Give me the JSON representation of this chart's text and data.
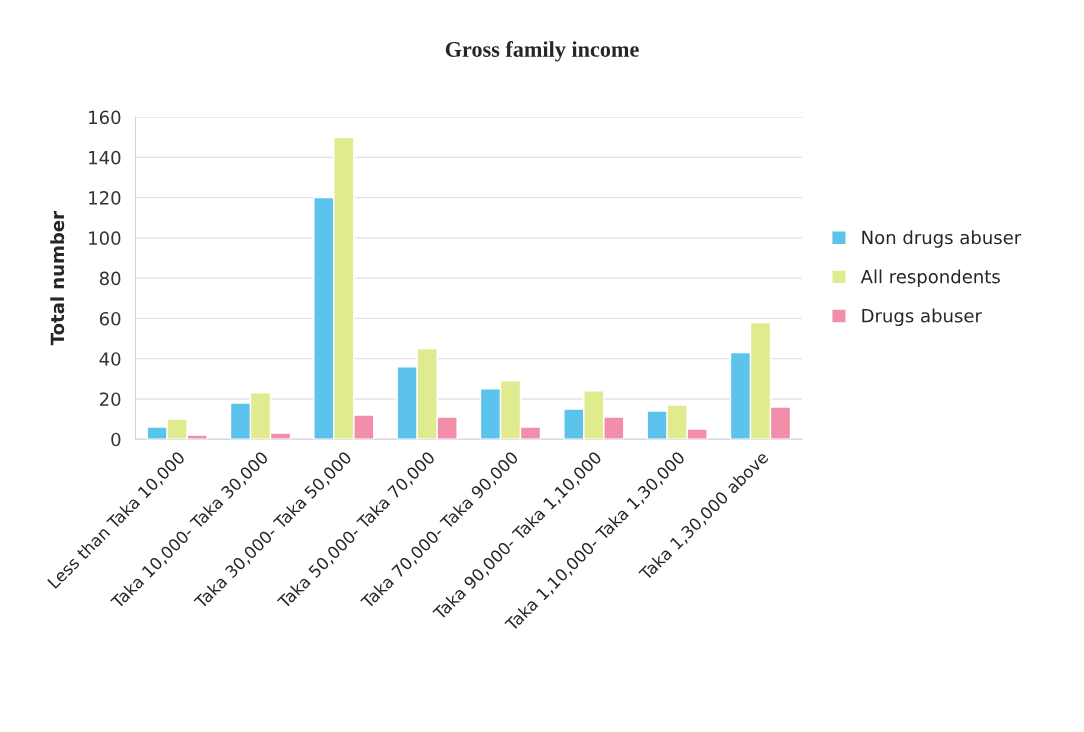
{
  "chart_data": {
    "type": "bar",
    "title": "Gross family income",
    "ylabel": "Total number",
    "categories": [
      "Less than Taka 10,000",
      "Taka 10,000- Taka 30,000",
      "Taka 30,000- Taka 50,000",
      "Taka 50,000- Taka 70,000",
      "Taka 70,000- Taka 90,000",
      "Taka 90,000- Taka 1,10,000",
      "Taka 1,10,000- Taka 1,30,000",
      "Taka 1,30,000 above"
    ],
    "series": [
      {
        "name": "Non drugs abuser",
        "color": "#5cc3ec",
        "values": [
          6,
          18,
          120,
          36,
          25,
          15,
          14,
          43
        ]
      },
      {
        "name": "All respondents",
        "color": "#dfeb8e",
        "values": [
          10,
          23,
          150,
          45,
          29,
          24,
          17,
          58
        ]
      },
      {
        "name": "Drugs abuser",
        "color": "#f28eaa",
        "values": [
          2,
          3,
          12,
          11,
          6,
          11,
          5,
          16
        ]
      }
    ],
    "ylim": [
      0,
      160
    ],
    "yticks": [
      0,
      20,
      40,
      60,
      80,
      100,
      120,
      140,
      160
    ],
    "grid": "y",
    "legend": "right"
  }
}
